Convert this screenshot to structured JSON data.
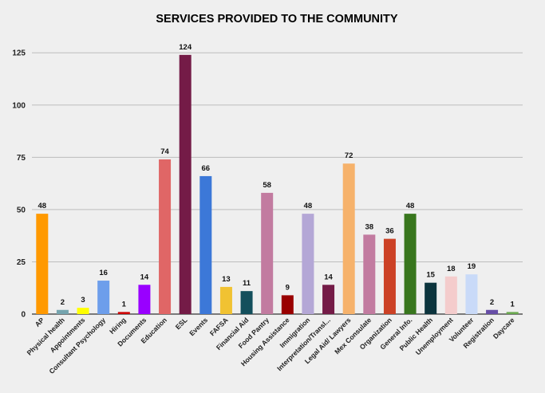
{
  "chart_data": {
    "type": "bar",
    "title": "SERVICES PROVIDED TO THE COMMUNITY",
    "xlabel": "",
    "ylabel": "",
    "ylim": [
      0,
      135
    ],
    "yticks": [
      0,
      25,
      50,
      75,
      100,
      125
    ],
    "grid": true,
    "categories": [
      "AP",
      "Physical health",
      "Appointments",
      "Consultant Psychology",
      "Hiring",
      "Documents",
      "Education",
      "ESL",
      "Events",
      "FAFSA",
      "Financial Aid",
      "Food Pantry",
      "Housing Assistance",
      "Immigration",
      "Interpretation/Transl...",
      "Legal Aid/ Lawyers",
      "Mex Consulate",
      "Organization",
      "General Info.",
      "Public Health",
      "Unemployment",
      "Volunteer",
      "Registration",
      "Daycare"
    ],
    "values": [
      48,
      2,
      3,
      16,
      1,
      14,
      74,
      124,
      66,
      13,
      11,
      58,
      9,
      48,
      14,
      72,
      38,
      36,
      48,
      15,
      18,
      19,
      2,
      1
    ],
    "colors": [
      "#ff9900",
      "#76a5af",
      "#ffff00",
      "#6d9eeb",
      "#cc0000",
      "#9900ff",
      "#e06666",
      "#741b47",
      "#3c78d8",
      "#f1c232",
      "#134f5c",
      "#c27ba0",
      "#990000",
      "#b4a7d6",
      "#741b47",
      "#f6b26b",
      "#c27ba0",
      "#cc4125",
      "#38761d",
      "#0c343d",
      "#f4cccc",
      "#c9daf8",
      "#674ea7",
      "#6aa84f"
    ]
  }
}
